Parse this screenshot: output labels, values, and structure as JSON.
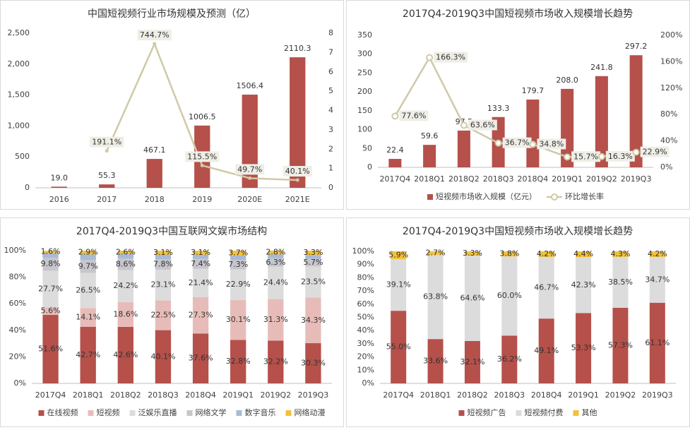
{
  "chart_data": [
    {
      "type": "combo",
      "title": "中国短视频行业市场规模及预测（亿）",
      "categories": [
        "2016",
        "2017",
        "2018",
        "2019",
        "2020E",
        "2021E"
      ],
      "series": [
        {
          "type": "bar",
          "color": "#b5504a",
          "values": [
            19.0,
            55.3,
            467.1,
            1006.5,
            1506.4,
            2110.3
          ],
          "value_labels": [
            "19.0",
            "55.3",
            "467.1",
            "1006.5",
            "1506.4",
            "2110.3"
          ]
        },
        {
          "type": "line",
          "axis": "y2",
          "color": "#cfcaa6",
          "values": [
            null,
            1.911,
            7.447,
            1.155,
            0.497,
            0.401
          ],
          "value_labels": [
            null,
            "191.1%",
            "744.7%",
            "115.5%",
            "49.7%",
            "40.1%"
          ]
        }
      ],
      "ylim": [
        0,
        2500
      ],
      "yticks": [
        0,
        500,
        {
          "value": 1000,
          "label": "1,000"
        },
        {
          "value": 1500,
          "label": "1,500"
        },
        {
          "value": 2000,
          "label": "2,000"
        },
        {
          "value": 2500,
          "label": "2,500"
        }
      ],
      "y2lim": [
        0,
        8
      ],
      "y2ticks": [
        0,
        1,
        2,
        3,
        4,
        5,
        6,
        7,
        8
      ]
    },
    {
      "type": "combo",
      "title": "2017Q4-2019Q3中国短视频市场收入规模增长趋势",
      "categories": [
        "2017Q4",
        "2018Q1",
        "2018Q2",
        "2018Q3",
        "2018Q4",
        "2019Q1",
        "2019Q2",
        "2019Q3"
      ],
      "series": [
        {
          "name": "短视频市场收入规模（亿元）",
          "type": "bar",
          "color": "#b5504a",
          "values": [
            22.4,
            59.6,
            97.5,
            133.3,
            179.7,
            208.0,
            241.8,
            297.2
          ],
          "value_labels": [
            "22.4",
            "59.6",
            "97.5",
            "133.3",
            "179.7",
            "208.0",
            "241.8",
            "297.2"
          ]
        },
        {
          "name": "环比增长率",
          "type": "line",
          "axis": "y2",
          "marker": true,
          "color": "#cfcaa6",
          "values": [
            77.6,
            166.3,
            63.6,
            36.7,
            34.8,
            15.7,
            16.3,
            22.9
          ],
          "value_labels": [
            "77.6%",
            "166.3%",
            "63.6%",
            "36.7%",
            "34.8%",
            "15.7%",
            "16.3%",
            "22.9%"
          ]
        }
      ],
      "ylim": [
        0,
        350
      ],
      "yticks": [
        0,
        50,
        100,
        150,
        200,
        250,
        300,
        350
      ],
      "y2lim": [
        0,
        200
      ],
      "y2ticks": [
        {
          "value": 0,
          "label": "0%"
        },
        {
          "value": 40,
          "label": "40%"
        },
        {
          "value": 80,
          "label": "80%"
        },
        {
          "value": 120,
          "label": "120%"
        },
        {
          "value": 160,
          "label": "160%"
        },
        {
          "value": 200,
          "label": "200%"
        }
      ]
    },
    {
      "type": "stacked_bar",
      "title": "2017Q4-2019Q3中国互联网文娱市场结构",
      "categories": [
        "2017Q4",
        "2018Q1",
        "2018Q2",
        "2018Q3",
        "2018Q4",
        "2019Q1",
        "2019Q2",
        "2019Q3"
      ],
      "series": [
        {
          "name": "在线视频",
          "color": "#b5504a",
          "values": [
            51.6,
            42.7,
            42.6,
            40.1,
            37.6,
            32.8,
            32.2,
            30.3
          ],
          "value_labels": [
            "51.6%",
            "42.7%",
            "42.6%",
            "40.1%",
            "37.6%",
            "32.8%",
            "32.2%",
            "30.3%"
          ]
        },
        {
          "name": "短视频",
          "color": "#e7bcb8",
          "values": [
            5.6,
            14.1,
            18.6,
            22.5,
            27.3,
            30.1,
            31.3,
            34.3
          ],
          "value_labels": [
            "5.6%",
            "14.1%",
            "18.6%",
            "22.5%",
            "27.3%",
            "30.1%",
            "31.3%",
            "34.3%"
          ]
        },
        {
          "name": "泛娱乐直播",
          "color": "#dcdcdc",
          "values": [
            27.7,
            26.5,
            24.2,
            23.1,
            21.4,
            22.9,
            24.4,
            23.5
          ],
          "value_labels": [
            "27.7%",
            "26.5%",
            "24.2%",
            "23.1%",
            "21.4%",
            "22.9%",
            "24.4%",
            "23.5%"
          ]
        },
        {
          "name": "网络文学",
          "color": "#c6c6cc",
          "values": [
            9.8,
            9.7,
            8.6,
            7.8,
            7.4,
            7.3,
            6.3,
            5.7
          ],
          "value_labels": [
            "9.8%",
            "9.7%",
            "8.6%",
            "7.8%",
            "7.4%",
            "7.3%",
            "6.3%",
            "5.7%"
          ]
        },
        {
          "name": "数字音乐",
          "color": "#a9bad6",
          "values": [
            3.7,
            4.1,
            3.4,
            3.4,
            3.2,
            3.2,
            3.0,
            2.9
          ]
        },
        {
          "name": "网络动漫",
          "color": "#f3c13a",
          "values": [
            1.6,
            2.9,
            2.6,
            3.1,
            3.1,
            3.7,
            2.8,
            3.3
          ],
          "value_labels": [
            "1.6%",
            "2.9%",
            "2.6%",
            "3.1%",
            "3.1%",
            "3.7%",
            "2.8%",
            "3.3%"
          ]
        }
      ],
      "ylim": [
        0,
        100
      ],
      "yticks": [
        {
          "value": 0,
          "label": "0%"
        },
        {
          "value": 20,
          "label": "20%"
        },
        {
          "value": 40,
          "label": "40%"
        },
        {
          "value": 60,
          "label": "60%"
        },
        {
          "value": 80,
          "label": "80%"
        },
        {
          "value": 100,
          "label": "100%"
        }
      ]
    },
    {
      "type": "stacked_bar",
      "title": "2017Q4-2019Q3中国短视频市场收入规模增长趋势",
      "categories": [
        "2017Q4",
        "2018Q1",
        "2018Q2",
        "2018Q3",
        "2018Q4",
        "2019Q1",
        "2019Q2",
        "2019Q3"
      ],
      "series": [
        {
          "name": "短视频广告",
          "color": "#b5504a",
          "values": [
            55.0,
            33.6,
            32.1,
            36.2,
            49.1,
            53.3,
            57.3,
            61.1
          ],
          "value_labels": [
            "55.0%",
            "33.6%",
            "32.1%",
            "36.2%",
            "49.1%",
            "53.3%",
            "57.3%",
            "61.1%"
          ]
        },
        {
          "name": "短视频付费",
          "color": "#dcdcdc",
          "values": [
            39.1,
            63.8,
            64.6,
            60.0,
            46.7,
            42.3,
            38.5,
            34.7
          ],
          "value_labels": [
            "39.1%",
            "63.8%",
            "64.6%",
            "60.0%",
            "46.7%",
            "42.3%",
            "38.5%",
            "34.7%"
          ]
        },
        {
          "name": "其他",
          "color": "#f3c13a",
          "values": [
            5.9,
            2.7,
            3.3,
            3.8,
            4.2,
            4.4,
            4.3,
            4.2
          ],
          "value_labels": [
            "5.9%",
            "2.7%",
            "3.3%",
            "3.8%",
            "4.2%",
            "4.4%",
            "4.3%",
            "4.2%"
          ]
        }
      ],
      "ylim": [
        0,
        100
      ],
      "yticks": [
        {
          "value": 0,
          "label": "0%"
        },
        {
          "value": 10,
          "label": "10%"
        },
        {
          "value": 20,
          "label": "20%"
        },
        {
          "value": 30,
          "label": "30%"
        },
        {
          "value": 40,
          "label": "40%"
        },
        {
          "value": 50,
          "label": "50%"
        },
        {
          "value": 60,
          "label": "60%"
        },
        {
          "value": 70,
          "label": "70%"
        },
        {
          "value": 80,
          "label": "80%"
        },
        {
          "value": 90,
          "label": "90%"
        },
        {
          "value": 100,
          "label": "100%"
        }
      ]
    }
  ]
}
